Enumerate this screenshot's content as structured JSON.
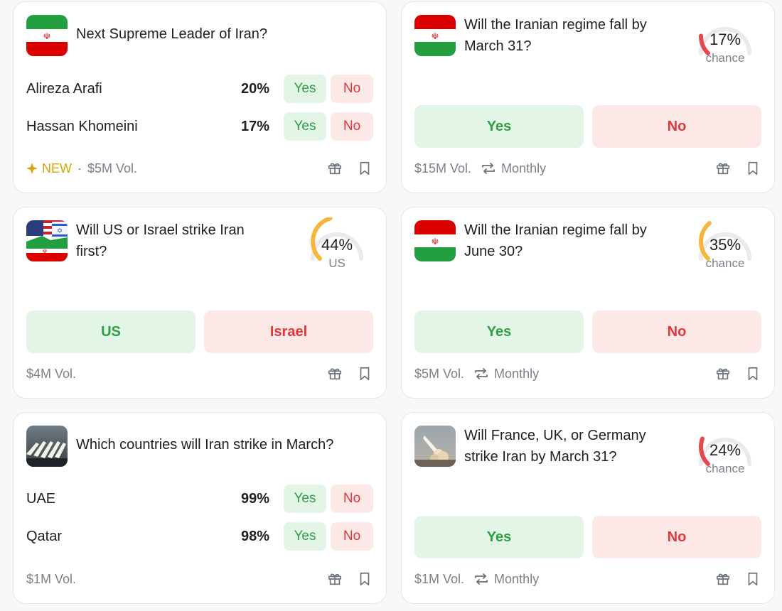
{
  "colors": {
    "yes": "#2ea043",
    "no": "#e0373a",
    "gauge_low": "#e5484d",
    "gauge_mid": "#f5b73b",
    "new": "#d9a300"
  },
  "cards": [
    {
      "thumb": "iran-flag",
      "title": "Next Supreme Leader of Iran?",
      "rows": [
        {
          "name": "Alireza Arafi",
          "pct": "20%",
          "yes": "Yes",
          "no": "No"
        },
        {
          "name": "Hassan Khomeini",
          "pct": "17%",
          "yes": "Yes",
          "no": "No"
        }
      ],
      "footer": {
        "new_label": "NEW",
        "volume": "$5M Vol."
      }
    },
    {
      "thumb": "iran-flag",
      "title": "Will the Iranian regime fall by March 31?",
      "gauge": {
        "pct": "17%",
        "label": "chance",
        "value": 0.17
      },
      "buttons": {
        "left": "Yes",
        "right": "No"
      },
      "footer": {
        "volume": "$15M Vol.",
        "recurrence": "Monthly"
      }
    },
    {
      "thumb": "us-israel-iran-flags",
      "title": "Will US or Israel strike Iran first?",
      "gauge": {
        "pct": "44%",
        "label": "US",
        "value": 0.44
      },
      "buttons": {
        "left": "US",
        "right": "Israel"
      },
      "footer": {
        "volume": "$4M Vol."
      }
    },
    {
      "thumb": "iran-flag",
      "title": "Will the Iranian regime fall by June 30?",
      "gauge": {
        "pct": "35%",
        "label": "chance",
        "value": 0.35
      },
      "buttons": {
        "left": "Yes",
        "right": "No"
      },
      "footer": {
        "volume": "$5M Vol.",
        "recurrence": "Monthly"
      }
    },
    {
      "thumb": "missile-launch-photo",
      "title": "Which countries will Iran strike in March?",
      "rows": [
        {
          "name": "UAE",
          "pct": "99%",
          "yes": "Yes",
          "no": "No"
        },
        {
          "name": "Qatar",
          "pct": "98%",
          "yes": "Yes",
          "no": "No"
        }
      ],
      "footer": {
        "volume": "$1M Vol."
      }
    },
    {
      "thumb": "rocket-launch-photo",
      "title": "Will France, UK, or Germany strike Iran by March 31?",
      "gauge": {
        "pct": "24%",
        "label": "chance",
        "value": 0.24
      },
      "buttons": {
        "left": "Yes",
        "right": "No"
      },
      "footer": {
        "volume": "$1M Vol.",
        "recurrence": "Monthly"
      }
    }
  ]
}
